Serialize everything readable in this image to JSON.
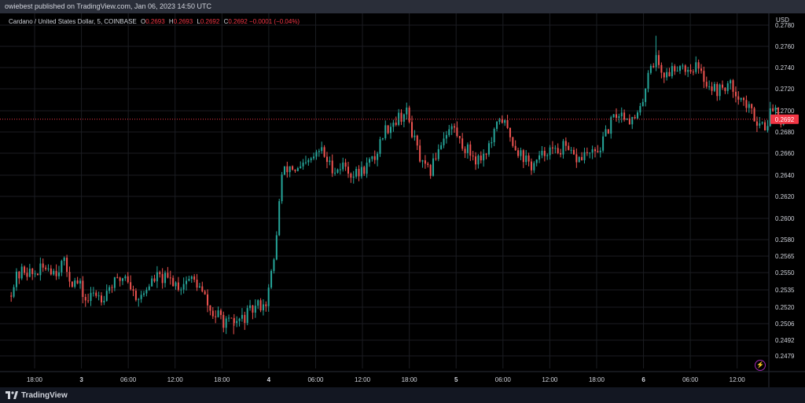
{
  "header": {
    "published_text": "owiebest published on TradingView.com, Jan 06, 2023 14:50 UTC"
  },
  "legend": {
    "symbol": "Cardano / United States Dollar, 5, COINBASE",
    "open_label": "O",
    "open_value": "0.2693",
    "high_label": "H",
    "high_value": "0.2693",
    "low_label": "L",
    "low_value": "0.2692",
    "close_label": "C",
    "close_value": "0.2692",
    "change": "−0.0001 (−0.04%)"
  },
  "axis": {
    "currency": "USD"
  },
  "footer": {
    "brand": "TradingView"
  },
  "colors": {
    "up": "#26a69a",
    "down": "#ef5350",
    "background": "#000000",
    "grid": "#1b1d22",
    "price_line": "#f23645",
    "axis_text": "#d1d4dc"
  },
  "chart_data": {
    "type": "candlestick",
    "symbol": "ADA/USD",
    "timeframe": "5",
    "exchange": "COINBASE",
    "last_price": 0.2692,
    "last_price_label": "0.2692",
    "y_ticks": [
      0.278,
      0.276,
      0.274,
      0.272,
      0.27,
      0.268,
      0.266,
      0.264,
      0.262,
      0.26,
      0.258,
      0.2565,
      0.255,
      0.2535,
      0.252,
      0.2506,
      0.2492,
      0.2479
    ],
    "y_tick_labels": [
      "0.2780",
      "0.2760",
      "0.2740",
      "0.2720",
      "0.2700",
      "0.2680",
      "0.2660",
      "0.2640",
      "0.2620",
      "0.2600",
      "0.2580",
      "0.2565",
      "0.2550",
      "0.2535",
      "0.2520",
      "0.2506",
      "0.2492",
      "0.2479"
    ],
    "x_ticks": [
      {
        "label": "18:00",
        "t": 0.0,
        "bold": false
      },
      {
        "label": "3",
        "t": 6,
        "bold": true
      },
      {
        "label": "06:00",
        "t": 12,
        "bold": false
      },
      {
        "label": "12:00",
        "t": 18,
        "bold": false
      },
      {
        "label": "18:00",
        "t": 24,
        "bold": false
      },
      {
        "label": "4",
        "t": 30,
        "bold": true
      },
      {
        "label": "06:00",
        "t": 36,
        "bold": false
      },
      {
        "label": "12:00",
        "t": 42,
        "bold": false
      },
      {
        "label": "18:00",
        "t": 48,
        "bold": false
      },
      {
        "label": "5",
        "t": 54,
        "bold": true
      },
      {
        "label": "06:00",
        "t": 60,
        "bold": false
      },
      {
        "label": "12:00",
        "t": 66,
        "bold": false
      },
      {
        "label": "18:00",
        "t": 72,
        "bold": false
      },
      {
        "label": "6",
        "t": 78,
        "bold": true
      },
      {
        "label": "06:00",
        "t": 84,
        "bold": false
      },
      {
        "label": "12:00",
        "t": 90,
        "bold": false
      }
    ],
    "price_path": [
      [
        -3.0,
        0.253
      ],
      [
        -2.0,
        0.2545
      ],
      [
        -1.0,
        0.2553
      ],
      [
        0.0,
        0.2548
      ],
      [
        1.0,
        0.2552
      ],
      [
        2.0,
        0.2556
      ],
      [
        3.0,
        0.2551
      ],
      [
        4.0,
        0.256
      ],
      [
        5.0,
        0.2543
      ],
      [
        6.0,
        0.254
      ],
      [
        7.0,
        0.2524
      ],
      [
        8.0,
        0.2533
      ],
      [
        9.0,
        0.2529
      ],
      [
        10.0,
        0.2539
      ],
      [
        11.0,
        0.2542
      ],
      [
        12.0,
        0.2549
      ],
      [
        13.0,
        0.2532
      ],
      [
        14.0,
        0.2528
      ],
      [
        15.0,
        0.254
      ],
      [
        16.0,
        0.2546
      ],
      [
        17.0,
        0.2544
      ],
      [
        18.0,
        0.2543
      ],
      [
        19.0,
        0.2538
      ],
      [
        20.0,
        0.2545
      ],
      [
        21.0,
        0.2542
      ],
      [
        22.0,
        0.253
      ],
      [
        23.0,
        0.2514
      ],
      [
        24.0,
        0.2512
      ],
      [
        25.0,
        0.2505
      ],
      [
        26.0,
        0.2507
      ],
      [
        27.0,
        0.251
      ],
      [
        28.0,
        0.2516
      ],
      [
        29.0,
        0.2522
      ],
      [
        30.0,
        0.2524
      ],
      [
        31.0,
        0.256
      ],
      [
        32.0,
        0.264
      ],
      [
        33.0,
        0.2648
      ],
      [
        34.0,
        0.2644
      ],
      [
        35.0,
        0.2648
      ],
      [
        36.0,
        0.2655
      ],
      [
        37.0,
        0.2664
      ],
      [
        38.0,
        0.265
      ],
      [
        39.0,
        0.2645
      ],
      [
        40.0,
        0.265
      ],
      [
        41.0,
        0.264
      ],
      [
        42.0,
        0.2642
      ],
      [
        43.0,
        0.265
      ],
      [
        44.0,
        0.2656
      ],
      [
        45.0,
        0.268
      ],
      [
        46.0,
        0.2688
      ],
      [
        47.0,
        0.2694
      ],
      [
        48.0,
        0.2698
      ],
      [
        49.0,
        0.2672
      ],
      [
        50.0,
        0.2648
      ],
      [
        51.0,
        0.2642
      ],
      [
        52.0,
        0.2664
      ],
      [
        53.0,
        0.268
      ],
      [
        54.0,
        0.2685
      ],
      [
        55.0,
        0.2668
      ],
      [
        56.0,
        0.2662
      ],
      [
        57.0,
        0.2654
      ],
      [
        58.0,
        0.266
      ],
      [
        59.0,
        0.2672
      ],
      [
        60.0,
        0.2696
      ],
      [
        61.0,
        0.268
      ],
      [
        62.0,
        0.2665
      ],
      [
        63.0,
        0.2656
      ],
      [
        64.0,
        0.2648
      ],
      [
        65.0,
        0.2654
      ],
      [
        66.0,
        0.2664
      ],
      [
        67.0,
        0.266
      ],
      [
        68.0,
        0.2666
      ],
      [
        69.0,
        0.2658
      ],
      [
        70.0,
        0.2654
      ],
      [
        71.0,
        0.266
      ],
      [
        72.0,
        0.2658
      ],
      [
        73.0,
        0.2668
      ],
      [
        74.0,
        0.2686
      ],
      [
        75.0,
        0.2698
      ],
      [
        76.0,
        0.2696
      ],
      [
        77.0,
        0.269
      ],
      [
        78.0,
        0.27
      ],
      [
        79.0,
        0.274
      ],
      [
        80.0,
        0.2748
      ],
      [
        81.0,
        0.2732
      ],
      [
        82.0,
        0.2738
      ],
      [
        83.0,
        0.2744
      ],
      [
        84.0,
        0.2738
      ],
      [
        85.0,
        0.2742
      ],
      [
        86.0,
        0.273
      ],
      [
        87.0,
        0.2722
      ],
      [
        88.0,
        0.2718
      ],
      [
        89.0,
        0.2724
      ],
      [
        90.0,
        0.272
      ],
      [
        91.0,
        0.271
      ],
      [
        92.0,
        0.27
      ],
      [
        93.0,
        0.269
      ],
      [
        94.0,
        0.2686
      ],
      [
        95.0,
        0.2705
      ],
      [
        96.0,
        0.2692
      ]
    ],
    "notable_extremes": {
      "high": 0.277,
      "low": 0.2497
    }
  }
}
